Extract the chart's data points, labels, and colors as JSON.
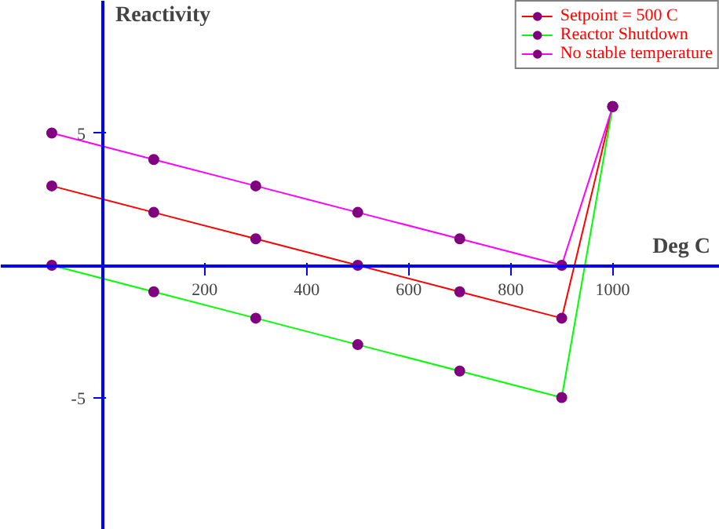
{
  "chart_data": {
    "type": "line",
    "xlabel": "Deg C",
    "ylabel": "Reactivity",
    "xlim": [
      -200,
      1210
    ],
    "ylim": [
      -10,
      10
    ],
    "xticks": [
      200,
      400,
      600,
      800,
      1000
    ],
    "yticks": [
      -5,
      5
    ],
    "grid": false,
    "legend": "top right",
    "marker": "circle",
    "series": [
      {
        "name": "Setpoint = 500 C",
        "color": "#ff0000",
        "x": [
          -100,
          100,
          300,
          500,
          700,
          900,
          1000
        ],
        "values": [
          3,
          2,
          1,
          0,
          -1,
          -2,
          6
        ]
      },
      {
        "name": "Reactor Shutdown",
        "color": "#00ff00",
        "x": [
          -100,
          100,
          300,
          500,
          700,
          900,
          1000
        ],
        "values": [
          0,
          -1,
          -2,
          -3,
          -4,
          -5,
          6
        ]
      },
      {
        "name": "No stable temperature",
        "color": "#ff00ff",
        "x": [
          -100,
          100,
          300,
          500,
          700,
          900,
          1000
        ],
        "values": [
          5,
          4,
          3,
          2,
          1,
          0,
          6
        ]
      }
    ]
  }
}
